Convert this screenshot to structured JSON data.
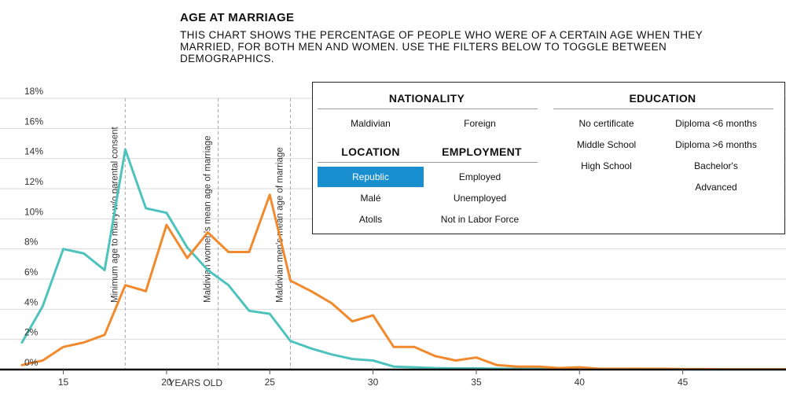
{
  "header": {
    "title": "AGE AT MARRIAGE",
    "subtitle": "THIS CHART SHOWS THE PERCENTAGE OF PEOPLE WHO WERE OF A CERTAIN AGE WHEN THEY MARRIED, FOR BOTH MEN AND WOMEN. USE THE FILTERS BELOW TO TOGGLE BETWEEN DEMOGRAPHICS."
  },
  "filters": {
    "nationality": {
      "title": "NATIONALITY",
      "options": [
        "Maldivian",
        "Foreign"
      ]
    },
    "location": {
      "title": "LOCATION",
      "options": [
        "Republic",
        "Malé",
        "Atolls"
      ],
      "selected": "Republic"
    },
    "employment": {
      "title": "EMPLOYMENT",
      "options": [
        "Employed",
        "Unemployed",
        "Not in Labor Force"
      ]
    },
    "education": {
      "title": "EDUCATION",
      "options": [
        "No certificate",
        "Diploma <6 months",
        "Middle School",
        "Diploma >6 months",
        "High School",
        "Bachelor's",
        "Advanced"
      ]
    },
    "colors": {
      "selected_bg": "#1a8fd0"
    }
  },
  "chart_data": {
    "type": "line",
    "xlabel": "YEARS OLD",
    "ylabel": "",
    "xlim": [
      13,
      50
    ],
    "ylim": [
      0,
      18
    ],
    "x_ticks": [
      15,
      20,
      25,
      30,
      35,
      40,
      45
    ],
    "y_ticks": [
      0,
      2,
      4,
      6,
      8,
      10,
      12,
      14,
      16,
      18
    ],
    "y_tick_labels": [
      "0%",
      "2%",
      "4%",
      "6%",
      "8%",
      "10%",
      "12%",
      "14%",
      "16%",
      "18%"
    ],
    "grid": true,
    "annotations": [
      {
        "x": 18,
        "label": "Minimum age to marry w/o parental consent"
      },
      {
        "x": 22.5,
        "label": "Maldivian women's mean age of marriage"
      },
      {
        "x": 26,
        "label": "Maldivian men's mean age of marriage"
      }
    ],
    "series": [
      {
        "color": "#4ec3bd",
        "x": [
          13,
          14,
          15,
          16,
          17,
          18,
          19,
          20,
          21,
          22,
          23,
          24,
          25,
          26,
          27,
          28,
          29,
          30,
          31,
          32,
          33,
          34,
          35,
          36,
          37,
          38,
          39,
          40,
          41,
          42,
          43,
          44,
          45,
          46,
          47,
          48,
          49,
          50
        ],
        "values": [
          1.8,
          4.2,
          8.0,
          7.7,
          6.6,
          14.6,
          10.7,
          10.4,
          8.1,
          6.6,
          5.6,
          3.9,
          3.7,
          1.9,
          1.4,
          1.0,
          0.7,
          0.6,
          0.2,
          0.15,
          0.1,
          0.08,
          0.08,
          0.06,
          0.05,
          0.05,
          0.04,
          0.04,
          0.03,
          0.03,
          0.02,
          0.02,
          0.02,
          0.01,
          0.01,
          0.01,
          0.01,
          0.01
        ]
      },
      {
        "color": "#f1892d",
        "x": [
          13,
          14,
          15,
          16,
          17,
          18,
          19,
          20,
          21,
          22,
          23,
          24,
          25,
          26,
          27,
          28,
          29,
          30,
          31,
          32,
          33,
          34,
          35,
          36,
          37,
          38,
          39,
          40,
          41,
          42,
          43,
          44,
          45,
          46,
          47,
          48,
          49,
          50
        ],
        "values": [
          0.3,
          0.6,
          1.5,
          1.8,
          2.3,
          5.6,
          5.2,
          9.6,
          7.4,
          9.1,
          7.8,
          7.8,
          11.6,
          5.9,
          5.2,
          4.4,
          3.2,
          3.6,
          1.5,
          1.5,
          0.9,
          0.6,
          0.8,
          0.3,
          0.2,
          0.2,
          0.1,
          0.15,
          0.05,
          0.05,
          0.05,
          0.05,
          0.03,
          0.03,
          0.02,
          0.02,
          0.02,
          0.02
        ]
      }
    ]
  }
}
